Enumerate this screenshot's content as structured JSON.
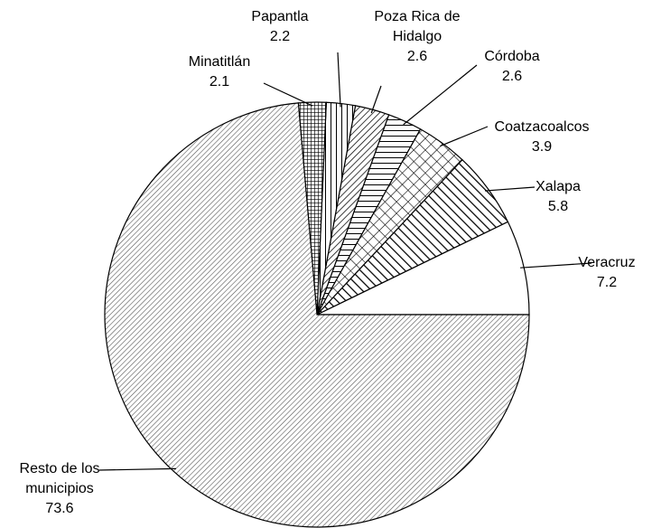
{
  "chart_data": {
    "type": "pie",
    "categories": [
      "Veracruz",
      "Xalapa",
      "Coatzacoalcos",
      "Córdoba",
      "Poza Rica de Hidalgo",
      "Papantla",
      "Minatitlán",
      "Resto de los municipios"
    ],
    "values": [
      7.2,
      5.8,
      3.9,
      2.6,
      2.6,
      2.2,
      2.1,
      73.6
    ],
    "patterns": [
      "solid-white",
      "diagonal-back",
      "crosshatch",
      "horizontal",
      "diagonal",
      "vertical",
      "grid",
      "fine-diagonal"
    ]
  }
}
